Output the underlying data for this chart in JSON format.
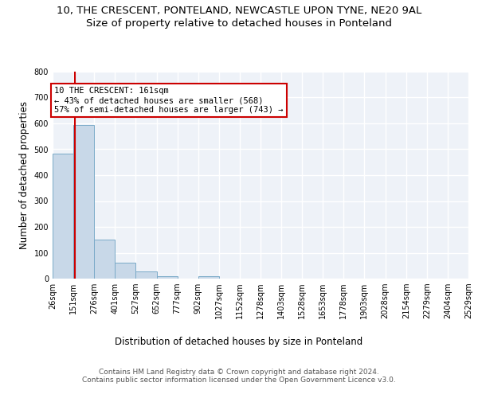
{
  "title": "10, THE CRESCENT, PONTELAND, NEWCASTLE UPON TYNE, NE20 9AL",
  "subtitle": "Size of property relative to detached houses in Ponteland",
  "xlabel": "Distribution of detached houses by size in Ponteland",
  "ylabel": "Number of detached properties",
  "bar_color": "#c8d8e8",
  "bar_edge_color": "#7aaac8",
  "vline_x": 161,
  "vline_color": "#cc0000",
  "annotation_line1": "10 THE CRESCENT: 161sqm",
  "annotation_line2": "← 43% of detached houses are smaller (568)",
  "annotation_line3": "57% of semi-detached houses are larger (743) →",
  "annotation_box_color": "#ffffff",
  "annotation_box_edge": "#cc0000",
  "bin_edges": [
    26,
    151,
    276,
    401,
    527,
    652,
    777,
    902,
    1027,
    1152,
    1278,
    1403,
    1528,
    1653,
    1778,
    1903,
    2028,
    2154,
    2279,
    2404,
    2529
  ],
  "bar_heights": [
    484,
    594,
    150,
    63,
    29,
    10,
    0,
    8,
    0,
    0,
    0,
    0,
    0,
    0,
    0,
    0,
    0,
    0,
    0,
    0
  ],
  "ylim": [
    0,
    800
  ],
  "yticks": [
    0,
    100,
    200,
    300,
    400,
    500,
    600,
    700,
    800
  ],
  "background_color": "#eef2f8",
  "grid_color": "#ffffff",
  "footer_text": "Contains HM Land Registry data © Crown copyright and database right 2024.\nContains public sector information licensed under the Open Government Licence v3.0.",
  "title_fontsize": 9.5,
  "subtitle_fontsize": 9.5,
  "tick_fontsize": 7,
  "ylabel_fontsize": 8.5,
  "xlabel_fontsize": 8.5,
  "footer_fontsize": 6.5
}
